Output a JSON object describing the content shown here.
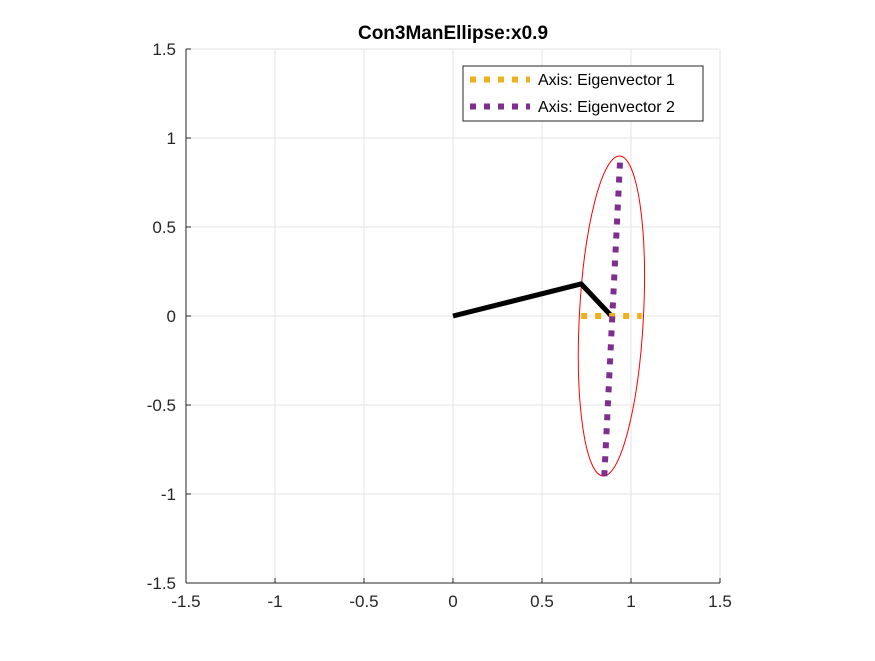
{
  "chart_data": {
    "type": "line",
    "title": "Con3ManEllipse:x0.9",
    "xlabel": "",
    "ylabel": "",
    "xlim": [
      -1.5,
      1.5
    ],
    "ylim": [
      -1.5,
      1.5
    ],
    "xticks": [
      -1.5,
      -1,
      -0.5,
      0,
      0.5,
      1,
      1.5
    ],
    "yticks": [
      -1.5,
      -1,
      -0.5,
      0,
      0.5,
      1,
      1.5
    ],
    "xtick_labels": [
      "-1.5",
      "-1",
      "-0.5",
      "0",
      "0.5",
      "1",
      "1.5"
    ],
    "ytick_labels": [
      "-1.5",
      "-1",
      "-0.5",
      "0",
      "0.5",
      "1",
      "1.5"
    ],
    "grid": true,
    "legend_position": "top-right",
    "series": [
      {
        "name": "Axis: Eigenvector 1",
        "color": "#EDB120",
        "style": "dotted-thick",
        "x": [
          0.72,
          1.06
        ],
        "y": [
          0.0,
          0.0
        ]
      },
      {
        "name": "Axis: Eigenvector 2",
        "color": "#7E2F8E",
        "style": "dotted-thick",
        "x": [
          0.85,
          0.94
        ],
        "y": [
          -0.9,
          0.9
        ]
      }
    ],
    "arm": {
      "color": "#000000",
      "x": [
        0,
        0.72,
        0.89
      ],
      "y": [
        0,
        0.18,
        0.0
      ]
    },
    "ellipse": {
      "color": "#FF0000",
      "center": [
        0.89,
        0.0
      ],
      "semi_major": 0.9,
      "semi_minor": 0.18,
      "angle_deg": 87
    }
  }
}
